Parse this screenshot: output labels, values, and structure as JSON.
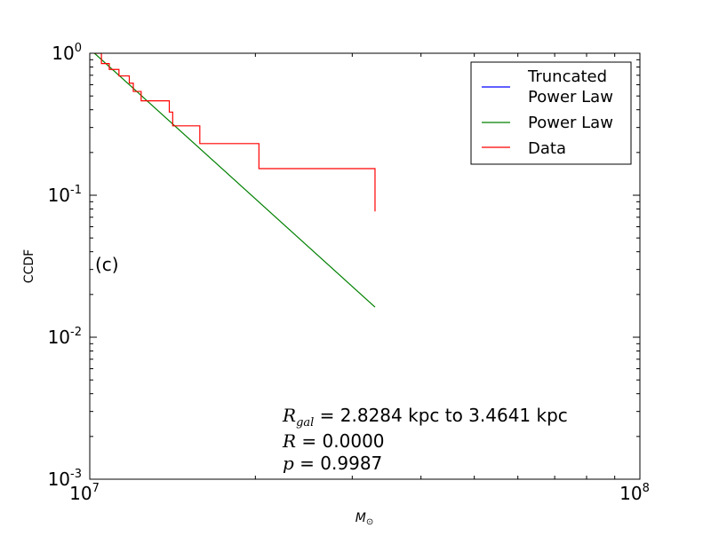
{
  "chart_data": {
    "type": "line",
    "xscale": "log",
    "yscale": "log",
    "xlim": [
      10000000,
      100000000
    ],
    "ylim": [
      0.001,
      1
    ],
    "xlabel": "M⊙",
    "xlabel_main": "M",
    "xlabel_sub": "⊙",
    "ylabel": "CCDF",
    "x_ticks": [
      {
        "base": "10",
        "exp": "7",
        "value": 10000000
      },
      {
        "base": "10",
        "exp": "8",
        "value": 100000000
      }
    ],
    "y_ticks": [
      {
        "base": "10",
        "exp": "0",
        "value": 1
      },
      {
        "base": "10",
        "exp": "-1",
        "value": 0.1
      },
      {
        "base": "10",
        "exp": "-2",
        "value": 0.01
      },
      {
        "base": "10",
        "exp": "-3",
        "value": 0.001
      }
    ],
    "panel_label": "(c)",
    "annotations": [
      {
        "symbol": "R",
        "subscript": "gal",
        "text": " = 2.8284 kpc to 3.4641 kpc"
      },
      {
        "symbol": "R",
        "subscript": "",
        "text": " = 0.0000"
      },
      {
        "symbol": "p",
        "subscript": "",
        "text": " = 0.9987"
      }
    ],
    "legend": {
      "position": "top-right",
      "entries": [
        {
          "label_lines": [
            "Truncated",
            "Power Law"
          ],
          "color": "#0000ff"
        },
        {
          "label_lines": [
            "Power Law"
          ],
          "color": "#008000"
        },
        {
          "label_lines": [
            "Data"
          ],
          "color": "#ff0000"
        }
      ]
    },
    "series": [
      {
        "name": "Power Law",
        "color": "#008000",
        "kind": "line",
        "x": [
          10200000,
          33000000
        ],
        "y": [
          1.0,
          0.0163
        ]
      },
      {
        "name": "Data",
        "color": "#ff0000",
        "kind": "step",
        "x": [
          10200000,
          10500000,
          10850000,
          11300000,
          11800000,
          12000000,
          12400000,
          13950000,
          14150000,
          15850000,
          20300000,
          33000000
        ],
        "y": [
          1.0,
          0.846,
          0.769,
          0.692,
          0.615,
          0.538,
          0.462,
          0.385,
          0.308,
          0.231,
          0.154,
          0.0769
        ]
      },
      {
        "name": "Truncated Power Law",
        "color": "#0000ff",
        "kind": "hidden",
        "x": [],
        "y": []
      }
    ]
  }
}
